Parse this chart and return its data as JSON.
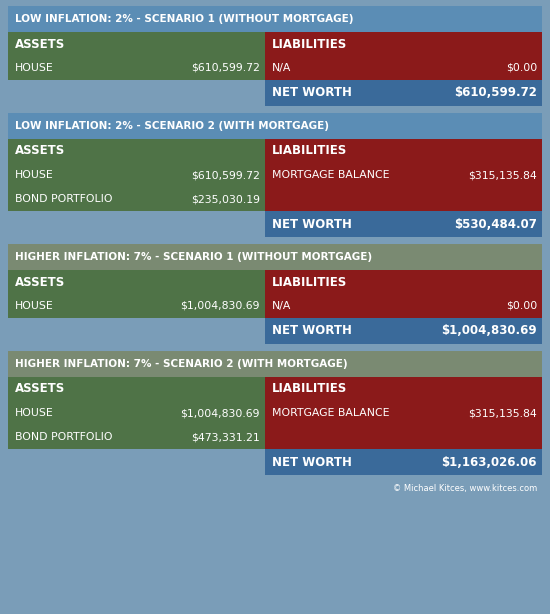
{
  "fig_width": 5.5,
  "fig_height": 6.14,
  "dpi": 100,
  "bg_color": "#7a9db8",
  "title_bg_blue": "#5b8db5",
  "title_bg_gray": "#7a8a72",
  "green_color": "#4f7347",
  "red_color": "#8b1a1a",
  "blue_color": "#3a6a9a",
  "white": "#ffffff",
  "scenarios": [
    {
      "title": "LOW INFLATION: 2% - SCENARIO 1 (WITHOUT MORTGAGE)",
      "title_bg": "blue",
      "assets": [
        [
          "HOUSE",
          "$610,599.72"
        ]
      ],
      "liabilities": [
        [
          "N/A",
          "$0.00"
        ]
      ],
      "net_worth": "$610,599.72"
    },
    {
      "title": "LOW INFLATION: 2% - SCENARIO 2 (WITH MORTGAGE)",
      "title_bg": "blue",
      "assets": [
        [
          "HOUSE",
          "$610,599.72"
        ],
        [
          "BOND PORTFOLIO",
          "$235,030.19"
        ]
      ],
      "liabilities": [
        [
          "MORTGAGE BALANCE",
          "$315,135.84"
        ]
      ],
      "net_worth": "$530,484.07"
    },
    {
      "title": "HIGHER INFLATION: 7% - SCENARIO 1 (WITHOUT MORTGAGE)",
      "title_bg": "gray",
      "assets": [
        [
          "HOUSE",
          "$1,004,830.69"
        ]
      ],
      "liabilities": [
        [
          "N/A",
          "$0.00"
        ]
      ],
      "net_worth": "$1,004,830.69"
    },
    {
      "title": "HIGHER INFLATION: 7% - SCENARIO 2 (WITH MORTGAGE)",
      "title_bg": "gray",
      "assets": [
        [
          "HOUSE",
          "$1,004,830.69"
        ],
        [
          "BOND PORTFOLIO",
          "$473,331.21"
        ]
      ],
      "liabilities": [
        [
          "MORTGAGE BALANCE",
          "$315,135.84"
        ]
      ],
      "net_worth": "$1,163,026.06"
    }
  ],
  "copyright_text": "© Michael Kitces, www.kitces.com"
}
